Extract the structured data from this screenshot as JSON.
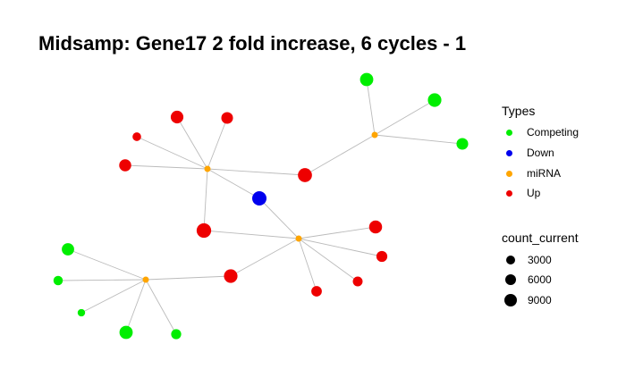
{
  "title": "Midsamp: Gene17 2 fold increase, 6 cycles - 1",
  "colors": {
    "Competing": "#00ee00",
    "Down": "#0000ee",
    "miRNA": "#ffa500",
    "Up": "#ee0000",
    "edge": "#bbbbbb"
  },
  "legend": {
    "types_title": "Types",
    "types": [
      {
        "label": "Competing",
        "color": "#00ee00"
      },
      {
        "label": "Down",
        "color": "#0000ee"
      },
      {
        "label": "miRNA",
        "color": "#ffa500"
      },
      {
        "label": "Up",
        "color": "#ee0000"
      }
    ],
    "size_title": "count_current",
    "sizes": [
      {
        "label": "3000",
        "value": 3000
      },
      {
        "label": "6000",
        "value": 6000
      },
      {
        "label": "9000",
        "value": 9000
      }
    ]
  },
  "network": {
    "nodes": [
      {
        "id": "m1",
        "type": "miRNA",
        "count": 500
      },
      {
        "id": "m2",
        "type": "miRNA",
        "count": 500
      },
      {
        "id": "m3",
        "type": "miRNA",
        "count": 500
      },
      {
        "id": "m4",
        "type": "miRNA",
        "count": 500
      },
      {
        "id": "down1",
        "type": "Down",
        "count": 9000
      },
      {
        "id": "c1",
        "type": "Competing",
        "count": 7000
      },
      {
        "id": "c2",
        "type": "Competing",
        "count": 7500
      },
      {
        "id": "c3",
        "type": "Competing",
        "count": 4500
      },
      {
        "id": "c4",
        "type": "Competing",
        "count": 5500
      },
      {
        "id": "c5",
        "type": "Competing",
        "count": 1800
      },
      {
        "id": "c6",
        "type": "Competing",
        "count": 500
      },
      {
        "id": "c7",
        "type": "Competing",
        "count": 7000
      },
      {
        "id": "c8",
        "type": "Competing",
        "count": 2500
      },
      {
        "id": "u1",
        "type": "Up",
        "count": 6000
      },
      {
        "id": "u2",
        "type": "Up",
        "count": 4500
      },
      {
        "id": "u3",
        "type": "Up",
        "count": 1200
      },
      {
        "id": "u4",
        "type": "Up",
        "count": 5000
      },
      {
        "id": "u5",
        "type": "Up",
        "count": 8500
      },
      {
        "id": "u6",
        "type": "Up",
        "count": 9500
      },
      {
        "id": "u7",
        "type": "Up",
        "count": 6500
      },
      {
        "id": "u8",
        "type": "Up",
        "count": 3500
      },
      {
        "id": "u9",
        "type": "Up",
        "count": 3000
      },
      {
        "id": "u10",
        "type": "Up",
        "count": 2200
      },
      {
        "id": "u11",
        "type": "Up",
        "count": 7500
      }
    ],
    "edges": [
      [
        "m1",
        "u1"
      ],
      [
        "m1",
        "u2"
      ],
      [
        "m1",
        "u3"
      ],
      [
        "m1",
        "u4"
      ],
      [
        "m1",
        "u5"
      ],
      [
        "m1",
        "down1"
      ],
      [
        "m1",
        "u6"
      ],
      [
        "m2",
        "u5"
      ],
      [
        "m2",
        "c1"
      ],
      [
        "m2",
        "c2"
      ],
      [
        "m2",
        "c3"
      ],
      [
        "m3",
        "u6"
      ],
      [
        "m3",
        "down1"
      ],
      [
        "m3",
        "u7"
      ],
      [
        "m3",
        "u8"
      ],
      [
        "m3",
        "u9"
      ],
      [
        "m3",
        "u10"
      ],
      [
        "m3",
        "u11"
      ],
      [
        "m4",
        "c4"
      ],
      [
        "m4",
        "c5"
      ],
      [
        "m4",
        "c6"
      ],
      [
        "m4",
        "c7"
      ],
      [
        "m4",
        "c8"
      ],
      [
        "m4",
        "u11"
      ]
    ]
  }
}
